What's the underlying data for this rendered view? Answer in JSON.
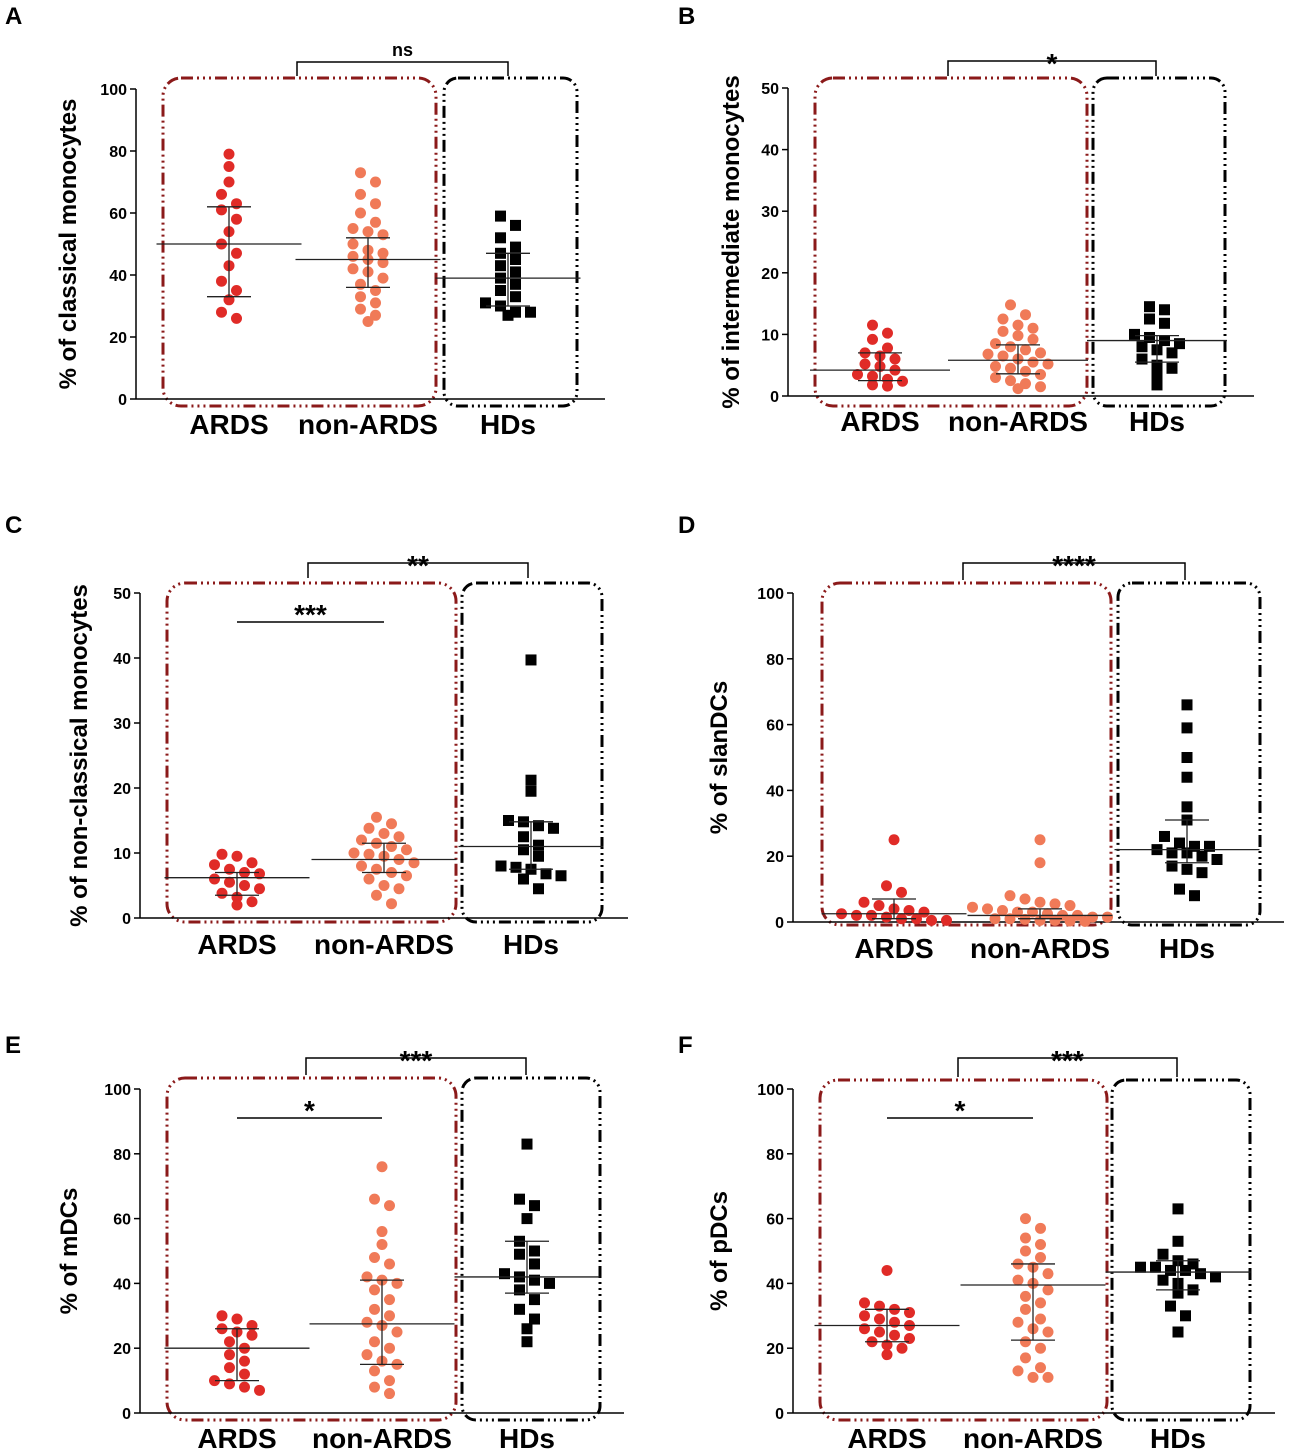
{
  "figure": {
    "colors": {
      "ards": "#e02b27",
      "non_ards": "#f07a58",
      "hds": "#000000",
      "box_patient": "#8b1a1a",
      "box_hd": "#000000"
    }
  },
  "chart_data": [
    {
      "panel": "A",
      "type": "scatter",
      "ylabel": "% of classical monocytes",
      "ylim": [
        0,
        100
      ],
      "yticks": [
        0,
        20,
        40,
        60,
        80,
        100
      ],
      "categories": [
        "ARDS",
        "non-ARDS",
        "HDs"
      ],
      "series": [
        {
          "name": "ARDS",
          "values": [
            79,
            75,
            70,
            66,
            63,
            61,
            58,
            54,
            50,
            47,
            43,
            38,
            35,
            32,
            28,
            26
          ],
          "median": 50,
          "iqr": [
            33,
            62
          ]
        },
        {
          "name": "non-ARDS",
          "values": [
            73,
            70,
            66,
            63,
            60,
            57,
            55,
            54,
            53,
            50,
            48,
            47,
            46,
            45,
            44,
            42,
            41,
            39,
            37,
            35,
            33,
            31,
            29,
            27,
            25
          ],
          "median": 45,
          "iqr": [
            36,
            52
          ]
        },
        {
          "name": "HDs",
          "values": [
            59,
            56,
            52,
            49,
            47,
            45,
            43,
            41,
            39,
            37,
            35,
            33,
            31,
            30,
            28,
            28,
            27
          ],
          "median": 39,
          "iqr": [
            30,
            47
          ]
        }
      ],
      "comparisons": [
        {
          "label": "ns",
          "type": "bracket",
          "from": "patients",
          "to": "HDs"
        }
      ]
    },
    {
      "panel": "B",
      "type": "scatter",
      "ylabel": "% of intermediate monocytes",
      "ylim": [
        0,
        50
      ],
      "yticks": [
        0,
        10,
        20,
        30,
        40,
        50
      ],
      "categories": [
        "ARDS",
        "non-ARDS",
        "HDs"
      ],
      "series": [
        {
          "name": "ARDS",
          "values": [
            11.5,
            10.2,
            9.2,
            7.8,
            7,
            6.5,
            6,
            5.2,
            4.8,
            4.2,
            3.5,
            3.2,
            2.7,
            2.4,
            1.8,
            1.6
          ],
          "median": 4.2,
          "iqr": [
            2.5,
            7
          ]
        },
        {
          "name": "non-ARDS",
          "values": [
            14.8,
            13.2,
            12.5,
            11.5,
            11,
            10.5,
            9.8,
            9.2,
            8.5,
            8,
            7.5,
            7,
            6.8,
            6.5,
            6,
            5.5,
            5.2,
            4.8,
            4.5,
            4,
            3.5,
            3,
            2.5,
            2,
            1.5,
            1.2
          ],
          "median": 5.8,
          "iqr": [
            3.6,
            8.3
          ]
        },
        {
          "name": "HDs",
          "values": [
            14.5,
            14,
            12.5,
            11.8,
            10,
            9.5,
            9,
            8.5,
            8,
            7.5,
            7,
            6,
            5,
            4.5,
            3.5,
            1.8
          ],
          "median": 9,
          "iqr": [
            5.5,
            9.8
          ]
        }
      ],
      "comparisons": [
        {
          "label": "*",
          "type": "bracket",
          "from": "patients",
          "to": "HDs"
        }
      ]
    },
    {
      "panel": "C",
      "type": "scatter",
      "ylabel": "% of non-classical monocytes",
      "ylim": [
        0,
        50
      ],
      "yticks": [
        0,
        10,
        20,
        30,
        40,
        50
      ],
      "categories": [
        "ARDS",
        "non-ARDS",
        "HDs"
      ],
      "series": [
        {
          "name": "ARDS",
          "values": [
            9.8,
            9.5,
            8.5,
            8.2,
            7.5,
            7,
            6.8,
            6,
            5.5,
            5,
            4.5,
            3.8,
            3.2,
            2.5,
            2
          ],
          "median": 6.2,
          "iqr": [
            3.5,
            7
          ]
        },
        {
          "name": "non-ARDS",
          "values": [
            15.5,
            14.5,
            13.8,
            13,
            12.5,
            12,
            11.5,
            11,
            10.5,
            10,
            9.8,
            9.5,
            9,
            8.5,
            8,
            7.5,
            7,
            6.5,
            6,
            5,
            4.5,
            3.5,
            2.2
          ],
          "median": 9,
          "iqr": [
            7,
            11.5
          ]
        },
        {
          "name": "HDs",
          "values": [
            39.7,
            21.2,
            19.5,
            15,
            14.8,
            14.2,
            13.8,
            12.5,
            11.2,
            10.5,
            9.5,
            8,
            7.8,
            7.5,
            6.8,
            6.5,
            6,
            4.5
          ],
          "median": 11,
          "iqr": [
            7.5,
            14.8
          ]
        }
      ],
      "comparisons": [
        {
          "label": "***",
          "type": "line",
          "from": "ARDS",
          "to": "non-ARDS"
        },
        {
          "label": "**",
          "type": "bracket",
          "from": "patients",
          "to": "HDs"
        }
      ]
    },
    {
      "panel": "D",
      "type": "scatter",
      "ylabel": "% of slanDCs",
      "ylim": [
        0,
        100
      ],
      "yticks": [
        0,
        20,
        40,
        60,
        80,
        100
      ],
      "categories": [
        "ARDS",
        "non-ARDS",
        "HDs"
      ],
      "series": [
        {
          "name": "ARDS",
          "values": [
            25,
            11,
            9,
            6,
            5,
            4,
            3.5,
            3,
            2.5,
            2,
            2,
            1.5,
            1,
            1,
            0.5,
            0.5
          ],
          "median": 2.5,
          "iqr": [
            1,
            7
          ]
        },
        {
          "name": "non-ARDS",
          "values": [
            25,
            18,
            8,
            7,
            6,
            5.5,
            5,
            4.5,
            4,
            3.5,
            3,
            3,
            2.5,
            2,
            2,
            1.5,
            1.5,
            1,
            1,
            0.8,
            0.5,
            0.5,
            0.3,
            0.2
          ],
          "median": 2,
          "iqr": [
            1,
            4
          ]
        },
        {
          "name": "HDs",
          "values": [
            66,
            59,
            50,
            44,
            35,
            31,
            26,
            24,
            23,
            23,
            22,
            21,
            21,
            20,
            19,
            17,
            16,
            15,
            10,
            8
          ],
          "median": 22,
          "iqr": [
            18,
            31
          ]
        }
      ],
      "comparisons": [
        {
          "label": "****",
          "type": "bracket",
          "from": "patients",
          "to": "HDs"
        }
      ]
    },
    {
      "panel": "E",
      "type": "scatter",
      "ylabel": "% of mDCs",
      "ylim": [
        0,
        100
      ],
      "yticks": [
        0,
        20,
        40,
        60,
        80,
        100
      ],
      "categories": [
        "ARDS",
        "non-ARDS",
        "HDs"
      ],
      "series": [
        {
          "name": "ARDS",
          "values": [
            30,
            29,
            27,
            26,
            25,
            24,
            22,
            20,
            18,
            16,
            14,
            12,
            10,
            9,
            8,
            7
          ],
          "median": 20,
          "iqr": [
            10,
            26
          ]
        },
        {
          "name": "non-ARDS",
          "values": [
            76,
            66,
            64,
            56,
            52,
            48,
            46,
            42,
            41,
            40,
            38,
            35,
            32,
            30,
            28,
            27,
            25,
            22,
            20,
            18,
            16,
            15,
            13,
            10,
            8,
            6
          ],
          "median": 27.5,
          "iqr": [
            15,
            41
          ]
        },
        {
          "name": "HDs",
          "values": [
            83,
            66,
            64,
            60,
            53,
            50,
            49,
            46,
            43,
            42,
            41,
            40,
            38,
            35,
            32,
            29,
            26,
            22
          ],
          "median": 42,
          "iqr": [
            37,
            53
          ]
        }
      ],
      "comparisons": [
        {
          "label": "*",
          "type": "line",
          "from": "ARDS",
          "to": "non-ARDS"
        },
        {
          "label": "***",
          "type": "bracket",
          "from": "patients",
          "to": "HDs"
        }
      ]
    },
    {
      "panel": "F",
      "type": "scatter",
      "ylabel": "% of pDCs",
      "ylim": [
        0,
        100
      ],
      "yticks": [
        0,
        20,
        40,
        60,
        80,
        100
      ],
      "categories": [
        "ARDS",
        "non-ARDS",
        "HDs"
      ],
      "series": [
        {
          "name": "ARDS",
          "values": [
            44,
            34,
            33,
            32,
            31,
            30,
            29,
            28,
            27,
            26,
            25,
            24,
            23,
            22,
            21,
            20,
            18
          ],
          "median": 27,
          "iqr": [
            22,
            32
          ]
        },
        {
          "name": "non-ARDS",
          "values": [
            60,
            57,
            54,
            52,
            50,
            48,
            46,
            45,
            43,
            41,
            40,
            38,
            36,
            34,
            32,
            29,
            28,
            26,
            25,
            22,
            20,
            17,
            14,
            13,
            11,
            11
          ],
          "median": 39.5,
          "iqr": [
            22.5,
            46
          ]
        },
        {
          "name": "HDs",
          "values": [
            63,
            53,
            49,
            47,
            46,
            45,
            45,
            44,
            44,
            43,
            42,
            41,
            40,
            38,
            37,
            33,
            30,
            25
          ],
          "median": 43.5,
          "iqr": [
            38,
            47
          ]
        }
      ],
      "comparisons": [
        {
          "label": "*",
          "type": "line",
          "from": "ARDS",
          "to": "non-ARDS"
        },
        {
          "label": "***",
          "type": "bracket",
          "from": "patients",
          "to": "HDs"
        }
      ]
    }
  ]
}
